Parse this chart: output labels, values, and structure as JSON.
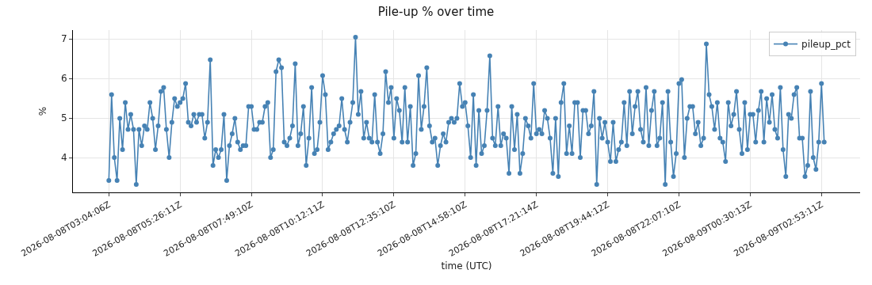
{
  "chart_data": {
    "type": "line",
    "title": "Pile-up % over time",
    "xlabel": "time (UTC)",
    "ylabel": "%",
    "categories": [
      "2026-08-08T03:04:06Z",
      null,
      null,
      null,
      null,
      null,
      null,
      null,
      null,
      null,
      null,
      null,
      null,
      null,
      null,
      null,
      null,
      null,
      null,
      null,
      null,
      null,
      null,
      null,
      null,
      null,
      "2026-08-08T05:26:11Z",
      null,
      null,
      null,
      null,
      null,
      null,
      null,
      null,
      null,
      null,
      null,
      null,
      null,
      null,
      null,
      null,
      null,
      null,
      null,
      null,
      null,
      null,
      null,
      null,
      null,
      "2026-08-08T07:49:10Z",
      null,
      null,
      null,
      null,
      null,
      null,
      null,
      null,
      null,
      null,
      null,
      null,
      null,
      null,
      null,
      null,
      null,
      null,
      null,
      null,
      null,
      null,
      null,
      null,
      null,
      "2026-08-08T10:12:11Z",
      null,
      null,
      null,
      null,
      null,
      null,
      null,
      null,
      null,
      null,
      null,
      null,
      null,
      null,
      null,
      null,
      null,
      null,
      null,
      null,
      null,
      null,
      null,
      null,
      null,
      "2026-08-08T12:35:10Z",
      null,
      null,
      null,
      null,
      null,
      null,
      null,
      null,
      null,
      null,
      null,
      null,
      null,
      null,
      null,
      null,
      null,
      null,
      null,
      null,
      null,
      null,
      null,
      null,
      null,
      "2026-08-08T14:58:10Z",
      null,
      null,
      null,
      null,
      null,
      null,
      null,
      null,
      null,
      null,
      null,
      null,
      null,
      null,
      null,
      null,
      null,
      null,
      null,
      null,
      null,
      null,
      null,
      null,
      null,
      "2026-08-08T17:21:14Z",
      null,
      null,
      null,
      null,
      null,
      null,
      null,
      null,
      null,
      null,
      null,
      null,
      null,
      null,
      null,
      null,
      null,
      null,
      null,
      null,
      null,
      null,
      null,
      null,
      null,
      "2026-08-08T19:44:12Z",
      null,
      null,
      null,
      null,
      null,
      null,
      null,
      null,
      null,
      null,
      null,
      null,
      null,
      null,
      null,
      null,
      null,
      null,
      null,
      null,
      null,
      null,
      null,
      null,
      null,
      "2026-08-08T22:07:10Z",
      null,
      null,
      null,
      null,
      null,
      null,
      null,
      null,
      null,
      null,
      null,
      null,
      null,
      null,
      null,
      null,
      null,
      null,
      null,
      null,
      null,
      null,
      null,
      null,
      null,
      "2026-08-09T00:30:13Z",
      null,
      null,
      null,
      null,
      null,
      null,
      null,
      null,
      null,
      null,
      null,
      null,
      null,
      null,
      null,
      null,
      null,
      null,
      null,
      null,
      null,
      null,
      null,
      null,
      null,
      "2026-08-09T02:53:11Z",
      null
    ],
    "series": [
      {
        "name": "pileup_pct",
        "color": "#4682b4",
        "values": [
          3.42,
          5.59,
          4.0,
          3.42,
          4.99,
          4.2,
          5.39,
          4.71,
          5.09,
          4.71,
          3.32,
          4.71,
          4.3,
          4.8,
          4.71,
          5.39,
          4.99,
          4.2,
          4.8,
          5.67,
          5.77,
          4.71,
          4.0,
          4.89,
          5.49,
          5.29,
          5.39,
          5.49,
          5.87,
          4.89,
          4.8,
          5.09,
          4.89,
          5.09,
          5.09,
          4.49,
          4.89,
          6.47,
          3.8,
          4.2,
          4.0,
          4.2,
          5.09,
          3.42,
          4.3,
          4.6,
          4.99,
          4.39,
          4.2,
          4.3,
          4.3,
          5.29,
          5.29,
          4.71,
          4.71,
          4.89,
          4.89,
          5.29,
          5.39,
          4.0,
          4.2,
          6.17,
          6.47,
          6.27,
          4.39,
          4.3,
          4.49,
          4.8,
          6.37,
          4.3,
          4.6,
          5.29,
          3.8,
          4.49,
          5.77,
          4.1,
          4.2,
          4.89,
          6.07,
          5.59,
          4.2,
          4.39,
          4.6,
          4.71,
          4.8,
          5.49,
          4.71,
          4.39,
          4.89,
          5.39,
          7.04,
          5.09,
          5.67,
          4.49,
          4.89,
          4.49,
          4.39,
          5.59,
          4.39,
          4.1,
          4.6,
          6.17,
          5.39,
          5.77,
          4.49,
          5.49,
          5.19,
          4.39,
          5.77,
          4.39,
          5.29,
          3.8,
          4.1,
          6.07,
          4.71,
          5.29,
          6.27,
          4.8,
          4.39,
          4.49,
          3.8,
          4.3,
          4.6,
          4.39,
          4.89,
          4.99,
          4.89,
          4.99,
          5.87,
          5.29,
          5.39,
          4.8,
          4.0,
          5.59,
          3.8,
          5.19,
          4.1,
          4.3,
          5.19,
          6.57,
          4.49,
          4.3,
          5.29,
          4.3,
          4.6,
          4.49,
          3.6,
          5.29,
          4.2,
          5.09,
          3.6,
          4.1,
          4.99,
          4.8,
          4.49,
          5.87,
          4.6,
          4.71,
          4.6,
          5.19,
          4.99,
          4.49,
          3.6,
          4.99,
          3.52,
          5.39,
          5.87,
          4.1,
          4.8,
          4.1,
          5.39,
          5.39,
          4.0,
          5.19,
          5.19,
          4.6,
          4.8,
          5.67,
          3.32,
          4.99,
          4.49,
          4.89,
          4.39,
          3.9,
          4.89,
          3.9,
          4.2,
          4.39,
          5.39,
          4.3,
          5.67,
          4.6,
          5.29,
          5.67,
          4.71,
          4.39,
          5.77,
          4.3,
          5.19,
          5.67,
          4.3,
          4.49,
          5.39,
          3.32,
          5.67,
          4.39,
          3.52,
          4.1,
          5.87,
          5.97,
          4.0,
          4.99,
          5.29,
          5.29,
          4.6,
          4.89,
          4.3,
          4.49,
          6.87,
          5.59,
          5.29,
          4.71,
          5.39,
          4.49,
          4.39,
          3.9,
          5.39,
          4.8,
          5.09,
          5.67,
          4.71,
          4.1,
          5.39,
          4.2,
          5.09,
          5.09,
          4.39,
          5.19,
          5.67,
          4.39,
          5.49,
          4.89,
          5.59,
          4.71,
          4.49,
          5.77,
          4.2,
          3.52,
          5.09,
          4.99,
          5.59,
          5.77,
          4.49,
          4.49,
          3.52,
          3.8,
          5.67,
          4.0,
          3.7,
          4.39,
          5.87,
          4.39
        ]
      }
    ],
    "ylim": [
      3.12,
      7.22
    ],
    "yticks": [
      4,
      5,
      6,
      7
    ],
    "grid": true,
    "legend": "top right",
    "marker": "circle",
    "line_style": "solid"
  }
}
